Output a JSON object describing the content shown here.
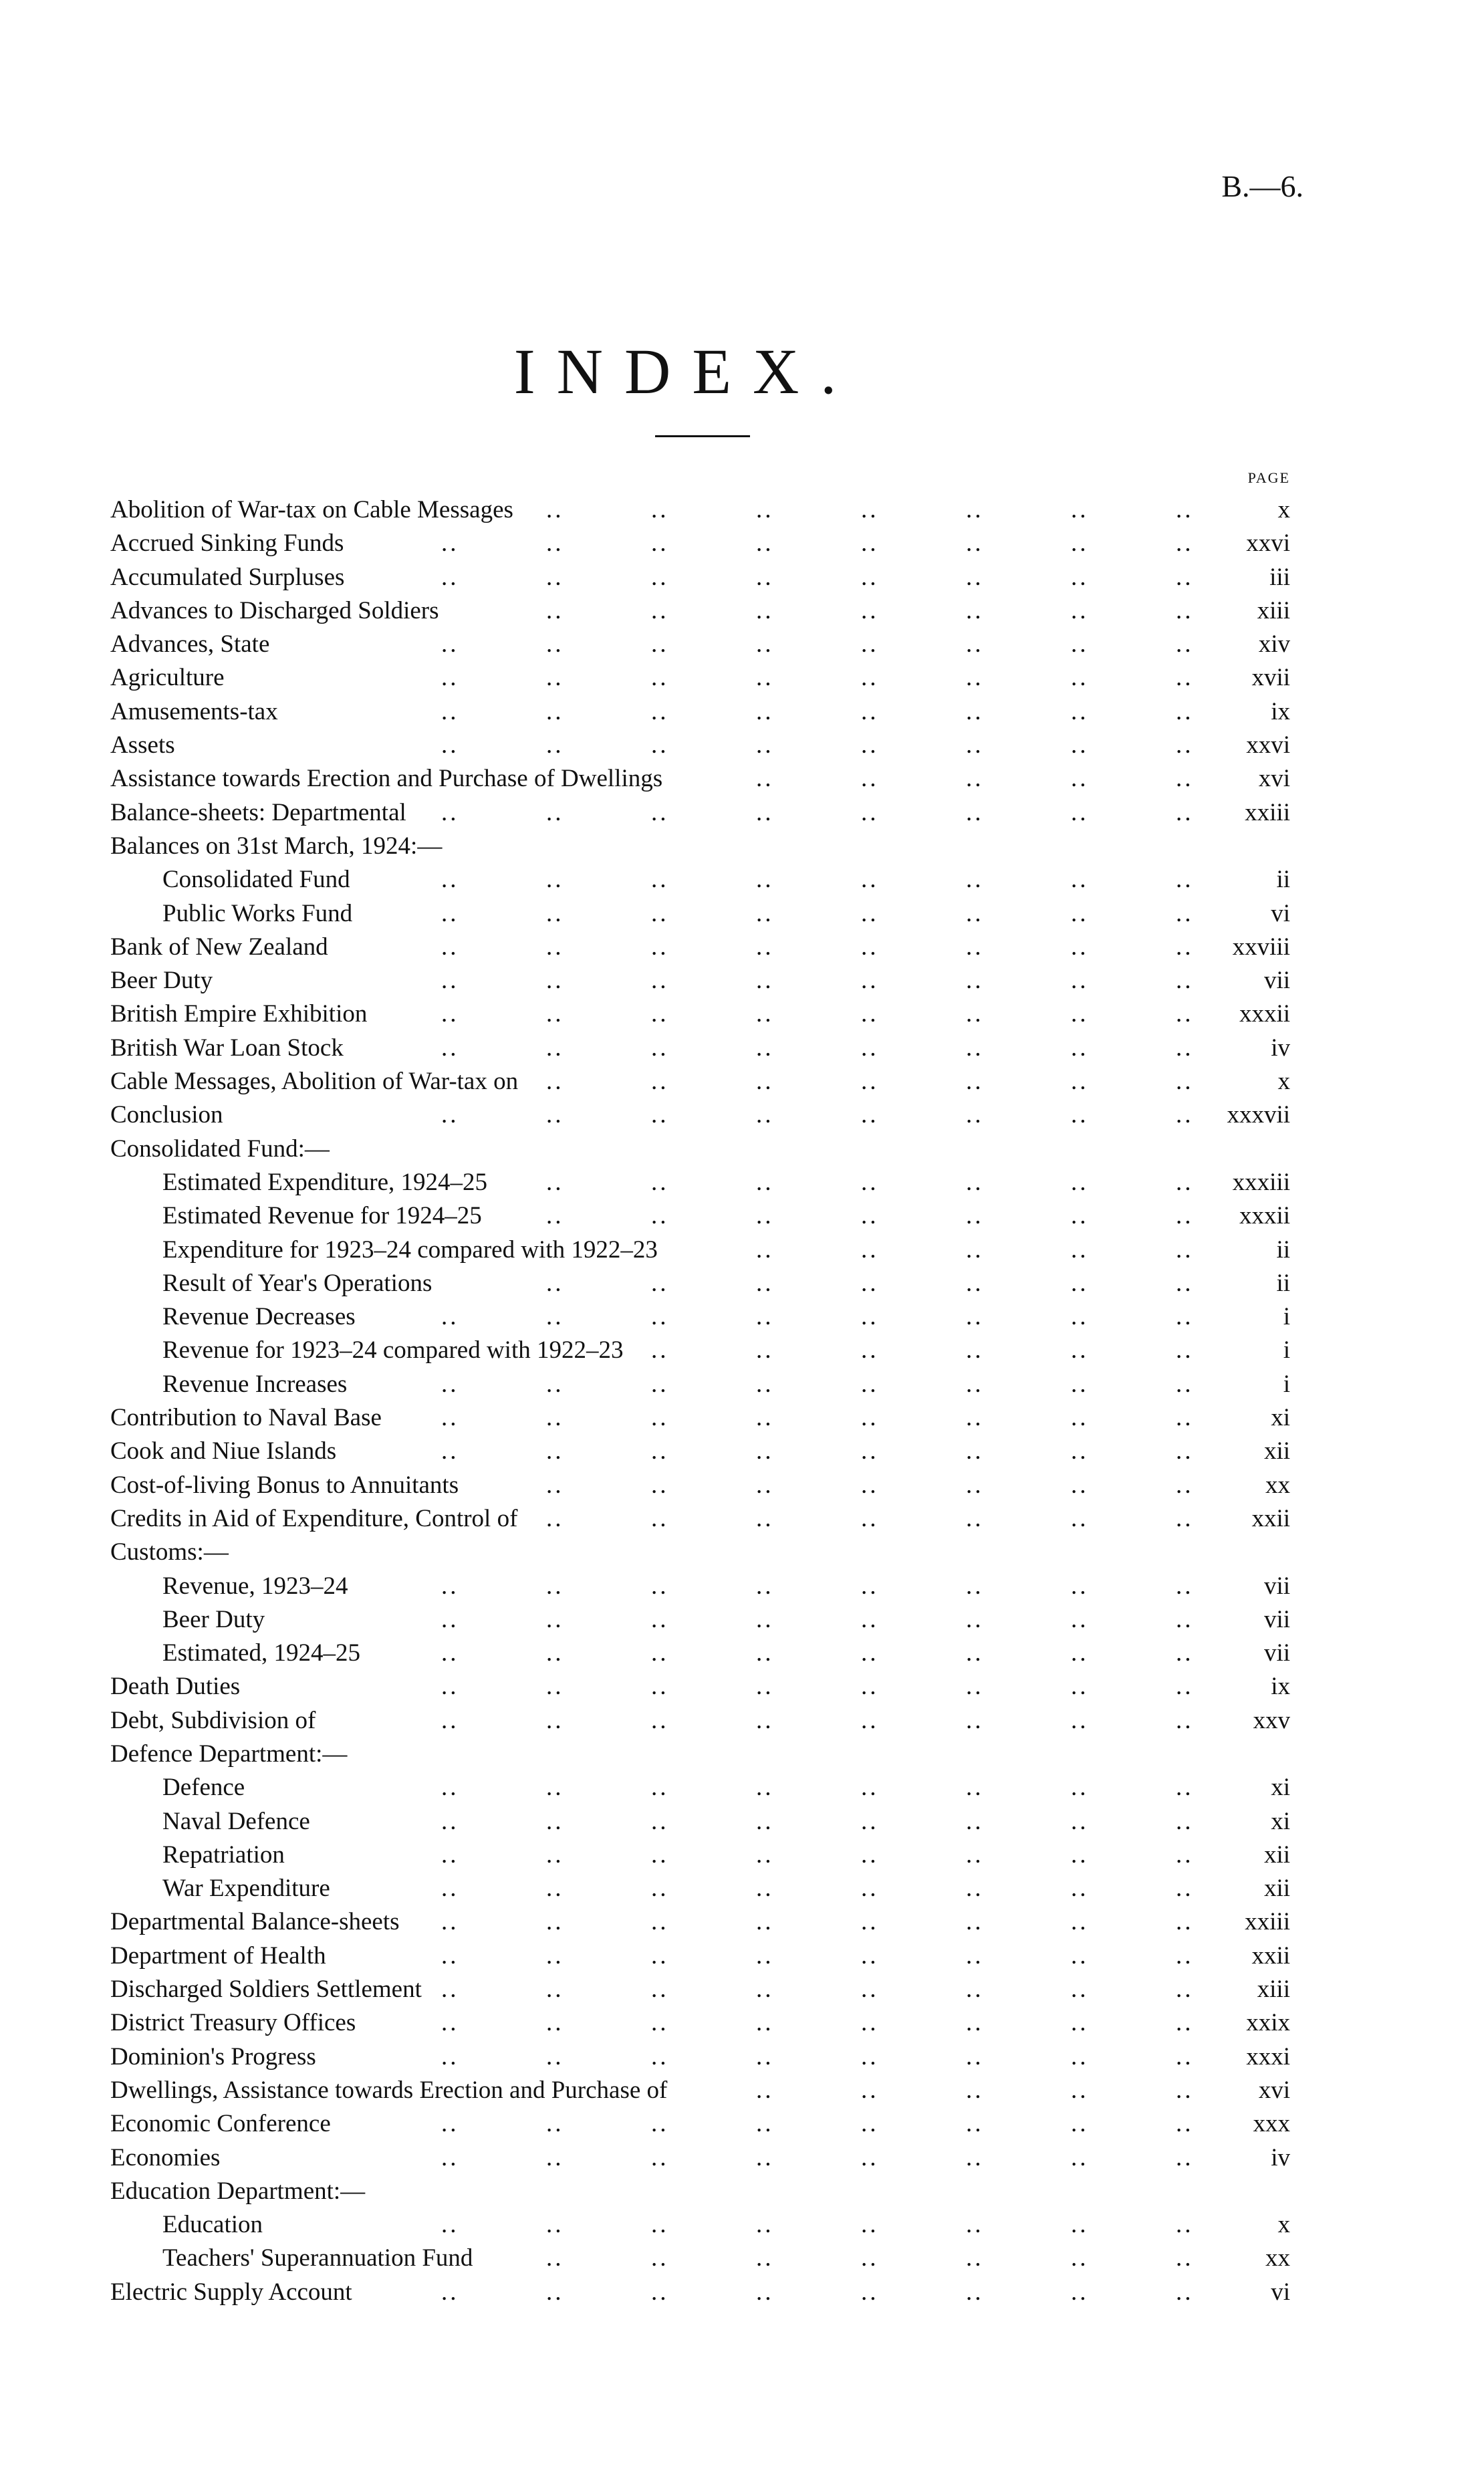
{
  "header": {
    "doc_ref": "B.—6.",
    "title": "INDEX.",
    "page_column_label": "PAGE"
  },
  "entries": [
    {
      "label": "Abolition of War-tax on Cable Messages",
      "page": "x",
      "sub": false
    },
    {
      "label": "Accrued Sinking Funds",
      "page": "xxvi",
      "sub": false
    },
    {
      "label": "Accumulated Surpluses",
      "page": "iii",
      "sub": false
    },
    {
      "label": "Advances to Discharged Soldiers",
      "page": "xiii",
      "sub": false
    },
    {
      "label": "Advances, State",
      "page": "xiv",
      "sub": false
    },
    {
      "label": "Agriculture",
      "page": "xvii",
      "sub": false
    },
    {
      "label": "Amusements-tax",
      "page": "ix",
      "sub": false
    },
    {
      "label": "Assets",
      "page": "xxvi",
      "sub": false
    },
    {
      "label": "Assistance towards Erection and Purchase of Dwellings",
      "page": "xvi",
      "sub": false
    },
    {
      "label": "Balance-sheets: Departmental",
      "page": "xxiii",
      "sub": false
    },
    {
      "label": "Balances on 31st March, 1924:—",
      "page": "",
      "sub": false
    },
    {
      "label": "Consolidated Fund",
      "page": "ii",
      "sub": true
    },
    {
      "label": "Public Works Fund",
      "page": "vi",
      "sub": true
    },
    {
      "label": "Bank of New Zealand",
      "page": "xxviii",
      "sub": false
    },
    {
      "label": "Beer Duty",
      "page": "vii",
      "sub": false
    },
    {
      "label": "British Empire Exhibition",
      "page": "xxxii",
      "sub": false
    },
    {
      "label": "British War Loan Stock",
      "page": "iv",
      "sub": false
    },
    {
      "label": "Cable Messages, Abolition of War-tax on",
      "page": "x",
      "sub": false
    },
    {
      "label": "Conclusion",
      "page": "xxxvii",
      "sub": false
    },
    {
      "label": "Consolidated Fund:—",
      "page": "",
      "sub": false
    },
    {
      "label": "Estimated Expenditure, 1924–25",
      "page": "xxxiii",
      "sub": true
    },
    {
      "label": "Estimated Revenue for 1924–25",
      "page": "xxxii",
      "sub": true
    },
    {
      "label": "Expenditure for 1923–24 compared with 1922–23",
      "page": "ii",
      "sub": true
    },
    {
      "label": "Result of Year's Operations",
      "page": "ii",
      "sub": true
    },
    {
      "label": "Revenue Decreases",
      "page": "i",
      "sub": true
    },
    {
      "label": "Revenue for 1923–24 compared with 1922–23",
      "page": "i",
      "sub": true
    },
    {
      "label": "Revenue Increases",
      "page": "i",
      "sub": true
    },
    {
      "label": "Contribution to Naval Base",
      "page": "xi",
      "sub": false
    },
    {
      "label": "Cook and Niue Islands",
      "page": "xii",
      "sub": false
    },
    {
      "label": "Cost-of-living Bonus to Annuitants",
      "page": "xx",
      "sub": false
    },
    {
      "label": "Credits in Aid of Expenditure, Control of",
      "page": "xxii",
      "sub": false
    },
    {
      "label": "Customs:—",
      "page": "",
      "sub": false
    },
    {
      "label": "Revenue, 1923–24",
      "page": "vii",
      "sub": true
    },
    {
      "label": "Beer Duty",
      "page": "vii",
      "sub": true
    },
    {
      "label": "Estimated, 1924–25",
      "page": "vii",
      "sub": true
    },
    {
      "label": "Death Duties",
      "page": "ix",
      "sub": false
    },
    {
      "label": "Debt, Subdivision of",
      "page": "xxv",
      "sub": false
    },
    {
      "label": "Defence Department:—",
      "page": "",
      "sub": false
    },
    {
      "label": "Defence",
      "page": "xi",
      "sub": true
    },
    {
      "label": "Naval Defence",
      "page": "xi",
      "sub": true
    },
    {
      "label": "Repatriation",
      "page": "xii",
      "sub": true
    },
    {
      "label": "War Expenditure",
      "page": "xii",
      "sub": true
    },
    {
      "label": "Departmental Balance-sheets",
      "page": "xxiii",
      "sub": false
    },
    {
      "label": "Department of Health",
      "page": "xxii",
      "sub": false
    },
    {
      "label": "Discharged Soldiers Settlement",
      "page": "xiii",
      "sub": false
    },
    {
      "label": "District Treasury Offices",
      "page": "xxix",
      "sub": false
    },
    {
      "label": "Dominion's Progress",
      "page": "xxxi",
      "sub": false
    },
    {
      "label": "Dwellings, Assistance towards Erection and Purchase of",
      "page": "xvi",
      "sub": false
    },
    {
      "label": "Economic Conference",
      "page": "xxx",
      "sub": false
    },
    {
      "label": "Economies",
      "page": "iv",
      "sub": false
    },
    {
      "label": "Education Department:—",
      "page": "",
      "sub": false
    },
    {
      "label": "Education",
      "page": "x",
      "sub": true
    },
    {
      "label": "Teachers' Superannuation Fund",
      "page": "xx",
      "sub": true
    },
    {
      "label": "Electric Supply Account",
      "page": "vi",
      "sub": false
    }
  ]
}
